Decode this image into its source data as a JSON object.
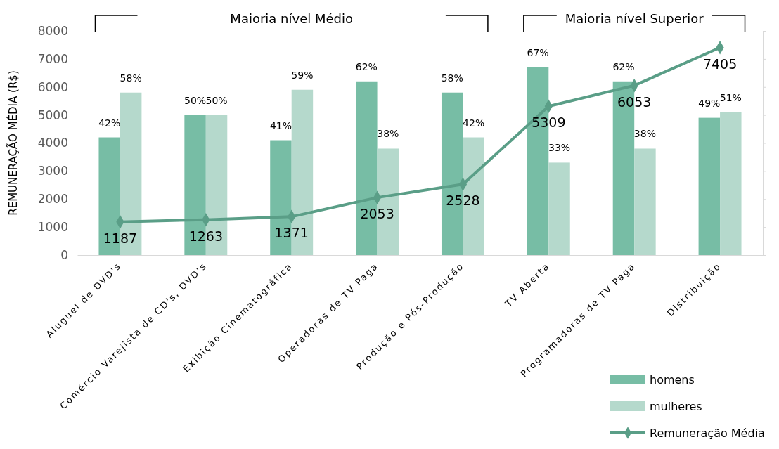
{
  "chart_data": {
    "type": "bar",
    "ylabel": "REMUNERAÇÃO MÉDIA (R$)",
    "categories": [
      "Aluguel de DVD's",
      "Comércio Varejista de CD's, DVD's",
      "Exibição Cinematográfica",
      "Operadoras de TV Paga",
      "Produção e Pós-Produção",
      "TV Aberta",
      "Programadoras de TV Paga",
      "Distribuição"
    ],
    "series": [
      {
        "name": "homens",
        "axis": "y2",
        "color": "#77bda5",
        "values": [
          42,
          50,
          41,
          62,
          58,
          67,
          62,
          49
        ],
        "value_labels": [
          "42%",
          "50%",
          "41%",
          "62%",
          "58%",
          "67%",
          "62%",
          "49%"
        ]
      },
      {
        "name": "mulheres",
        "axis": "y2",
        "color": "#b5d9cc",
        "values": [
          58,
          50,
          59,
          38,
          42,
          33,
          38,
          51
        ],
        "value_labels": [
          "58%",
          "50%",
          "59%",
          "38%",
          "42%",
          "33%",
          "38%",
          "51%"
        ]
      },
      {
        "name": "Remuneração Média",
        "type": "line",
        "color": "#5a9e87",
        "marker": "diamond",
        "values": [
          1187,
          1263,
          1371,
          2053,
          2528,
          5309,
          6053,
          7405
        ],
        "value_labels": [
          "1187",
          "1263",
          "1371",
          "2053",
          "2528",
          "5309",
          "6053",
          "7405"
        ]
      }
    ],
    "ylim": [
      0,
      8000
    ],
    "yticks": [
      0,
      1000,
      2000,
      3000,
      4000,
      5000,
      6000,
      7000,
      8000
    ],
    "y2lim": [
      0,
      80
    ],
    "y2ticks": [
      {
        "value": 0,
        "label": null
      },
      {
        "value": 10,
        "label": null
      },
      {
        "value": 20,
        "label": null
      },
      {
        "value": 30,
        "label": null
      },
      {
        "value": 40,
        "label": null
      },
      {
        "value": 50,
        "label": null
      },
      {
        "value": 60,
        "label": null
      },
      {
        "value": 70,
        "label": null
      },
      {
        "value": 80,
        "label": null
      }
    ],
    "annotations": [
      "Maioria nível Médio",
      "Maioria  nível Superior"
    ],
    "legend": "bottom right",
    "grid": false
  }
}
